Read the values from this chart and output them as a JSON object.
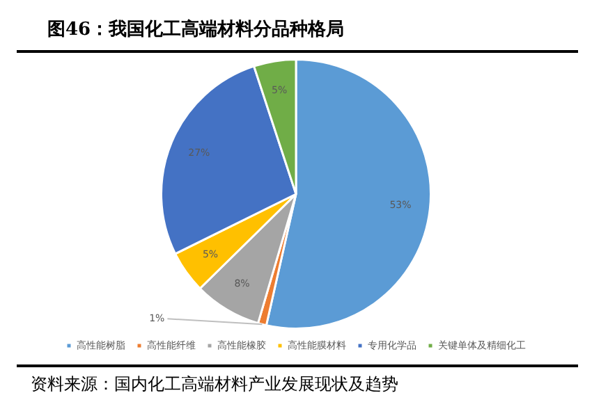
{
  "chart_data": {
    "type": "pie",
    "title": "图46：我国化工高端材料分品种格局",
    "categories": [
      "高性能树脂",
      "高性能纤维",
      "高性能橡胶",
      "高性能膜材料",
      "专用化学品",
      "关键单体及精细化工"
    ],
    "values": [
      53,
      1,
      8,
      5,
      27,
      5
    ],
    "colors": [
      "#5b9bd5",
      "#ed7d31",
      "#a5a5a5",
      "#ffc000",
      "#4472c4",
      "#70ad47"
    ],
    "value_labels": [
      "53%",
      "1%",
      "8%",
      "5%",
      "27%",
      "5%"
    ],
    "legend": "bottom",
    "annotations": [
      "资料来源：国内化工高端材料产业发展现状及趋势"
    ]
  }
}
